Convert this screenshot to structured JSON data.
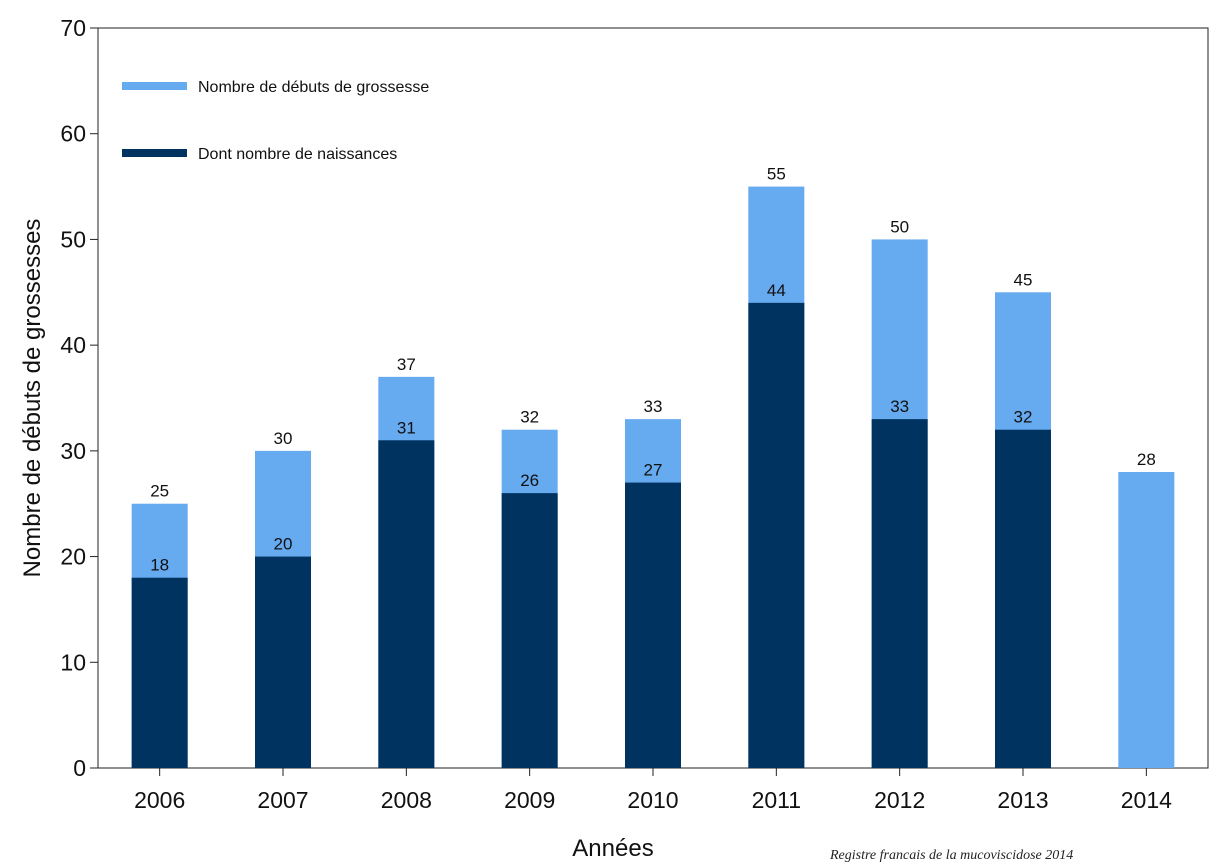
{
  "chart_data": {
    "type": "bar",
    "stacked": false,
    "overlapping": true,
    "title": "",
    "xlabel": "Années",
    "ylabel": "Nombre de débuts de grossesses",
    "ylim": [
      0,
      70
    ],
    "yticks": [
      0,
      10,
      20,
      30,
      40,
      50,
      60,
      70
    ],
    "grid": false,
    "legend_position": "top-left",
    "categories": [
      "2006",
      "2007",
      "2008",
      "2009",
      "2010",
      "2011",
      "2012",
      "2013",
      "2014"
    ],
    "series": [
      {
        "name": "Nombre de débuts de grossesse",
        "color": "#66aaf0",
        "values": [
          25,
          30,
          37,
          32,
          33,
          55,
          50,
          45,
          28
        ]
      },
      {
        "name": "Dont nombre de naissances",
        "color": "#00335f",
        "values": [
          18,
          20,
          31,
          26,
          27,
          44,
          33,
          32,
          null
        ]
      }
    ]
  },
  "footer": {
    "source_text": "Registre francais de la mucoviscidose 2014"
  }
}
